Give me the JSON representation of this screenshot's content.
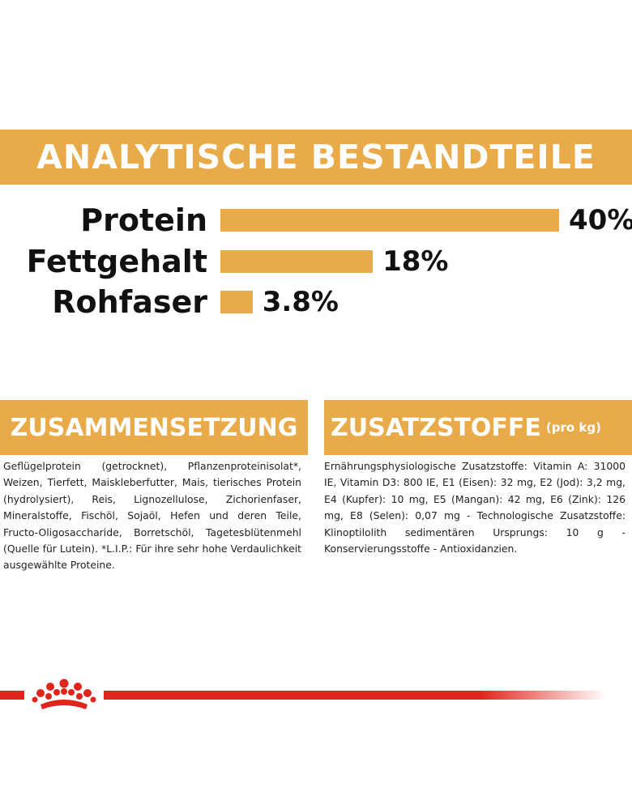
{
  "analytics": {
    "title": "ANALYTISCHE BESTANDTEILE",
    "rows": [
      {
        "label": "Protein",
        "value": "40%",
        "percent": 40
      },
      {
        "label": "Fettgehalt",
        "value": "18%",
        "percent": 18
      },
      {
        "label": "Rohfaser",
        "value": "3.8%",
        "percent": 3.8
      }
    ]
  },
  "composition": {
    "title": "ZUSAMMENSETZUNG",
    "text": "Geflügelprotein (getrocknet), Pflanzenproteinisolat*, Weizen, Tierfett, Maiskleberfutter, Mais, tierisches Protein (hydrolysiert), Reis, Lignozellulose, Zichorienfaser, Mineralstoffe, Fischöl, Sojaöl, Hefen und deren Teile, Fructo-Oligosaccharide, Borretschöl, Tagetesblütenmehl (Quelle für Lutein). *L.I.P.: Für ihre sehr hohe Verdaulichkeit ausgewählte Proteine."
  },
  "additives": {
    "title": "ZUSATZSTOFFE",
    "suffix": "(pro kg)",
    "text": "Ernährungsphysiologische Zusatzstoffe: Vitamin A: 31000 IE, Vitamin D3: 800 IE, E1 (Eisen): 32 mg, E2 (Jod): 3,2 mg, E4 (Kupfer): 10 mg, E5 (Mangan): 42 mg, E6 (Zink): 126 mg, E8 (Selen): 0,07 mg - Technologische Zusatzstoffe: Klinoptilolith sedimentären Ursprungs: 10 g - Konservierungsstoffe - Antioxidanzien."
  },
  "colors": {
    "accent": "#e9ab4a",
    "brand_red": "#e0261c"
  },
  "footer": {
    "logo_icon": "crown-icon"
  }
}
